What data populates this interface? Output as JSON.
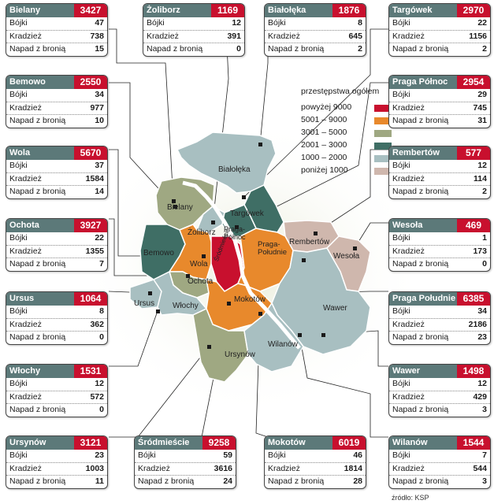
{
  "row_labels": {
    "fights": "Bójki",
    "thefts": "Kradzież",
    "robbery": "Napad z bronią"
  },
  "legend": {
    "title": "przestępstwa ogółem",
    "items": [
      {
        "label": "powyżej 9000",
        "color": "#c8102e"
      },
      {
        "label": "5001 – 9000",
        "color": "#e8892c"
      },
      {
        "label": "3001 – 5000",
        "color": "#9fa882"
      },
      {
        "label": "2001 – 3000",
        "color": "#3f6e65"
      },
      {
        "label": "1000 – 2000",
        "color": "#a8bfc1"
      },
      {
        "label": "poniżej 1000",
        "color": "#cfb7ad"
      }
    ]
  },
  "districts": {
    "bielany": {
      "name": "Bielany",
      "total": "3427",
      "fights": "47",
      "thefts": "738",
      "robbery": "15"
    },
    "zoliborz": {
      "name": "Żoliborz",
      "total": "1169",
      "fights": "12",
      "thefts": "391",
      "robbery": "0"
    },
    "bialoleka": {
      "name": "Białołęka",
      "total": "1876",
      "fights": "8",
      "thefts": "645",
      "robbery": "2"
    },
    "targowek": {
      "name": "Targówek",
      "total": "2970",
      "fights": "22",
      "thefts": "1156",
      "robbery": "2"
    },
    "bemowo": {
      "name": "Bemowo",
      "total": "2550",
      "fights": "34",
      "thefts": "977",
      "robbery": "10"
    },
    "praga_polnoc": {
      "name": "Praga Północ",
      "total": "2954",
      "fights": "29",
      "thefts": "745",
      "robbery": "31"
    },
    "wola": {
      "name": "Wola",
      "total": "5670",
      "fights": "37",
      "thefts": "1584",
      "robbery": "14"
    },
    "rembertow": {
      "name": "Rembertów",
      "total": "577",
      "fights": "12",
      "thefts": "114",
      "robbery": "2"
    },
    "ochota": {
      "name": "Ochota",
      "total": "3927",
      "fights": "22",
      "thefts": "1355",
      "robbery": "7"
    },
    "wesola": {
      "name": "Wesoła",
      "total": "469",
      "fights": "1",
      "thefts": "173",
      "robbery": "0"
    },
    "ursus": {
      "name": "Ursus",
      "total": "1064",
      "fights": "8",
      "thefts": "362",
      "robbery": "0"
    },
    "praga_poludnie": {
      "name": "Praga Południe",
      "total": "6385",
      "fights": "34",
      "thefts": "2186",
      "robbery": "23"
    },
    "wlochy": {
      "name": "Włochy",
      "total": "1531",
      "fights": "12",
      "thefts": "572",
      "robbery": "0"
    },
    "wawer": {
      "name": "Wawer",
      "total": "1498",
      "fights": "12",
      "thefts": "429",
      "robbery": "3"
    },
    "ursynow": {
      "name": "Ursynów",
      "total": "3121",
      "fights": "23",
      "thefts": "1003",
      "robbery": "11"
    },
    "srodmiescie": {
      "name": "Śródmieście",
      "total": "9258",
      "fights": "59",
      "thefts": "3616",
      "robbery": "24"
    },
    "mokotow": {
      "name": "Mokotów",
      "total": "6019",
      "fights": "46",
      "thefts": "1814",
      "robbery": "28"
    },
    "wilanow": {
      "name": "Wilanów",
      "total": "1544",
      "fights": "7",
      "thefts": "544",
      "robbery": "3"
    }
  },
  "map_labels": {
    "bialoleka": "Białołęka",
    "bielany": "Bielany",
    "targowek": "Targówek",
    "zoliborz": "Żoliborz",
    "praga_polnoc": "Praga-\nPółnoc",
    "rembertow": "Rembertów",
    "bemowo": "Bemowo",
    "wola": "Wola",
    "praga_poludnie": "Praga-\nPołudnie",
    "wesola": "Wesoła",
    "ochota": "Ochota",
    "srodmiescie": "Śródmieście",
    "ursus": "Ursus",
    "wlochy": "Włochy",
    "mokotow": "Mokotów",
    "wawer": "Wawer",
    "wilanow": "Wilanów",
    "ursynow": "Ursynów"
  },
  "source": "źródło: KSP"
}
